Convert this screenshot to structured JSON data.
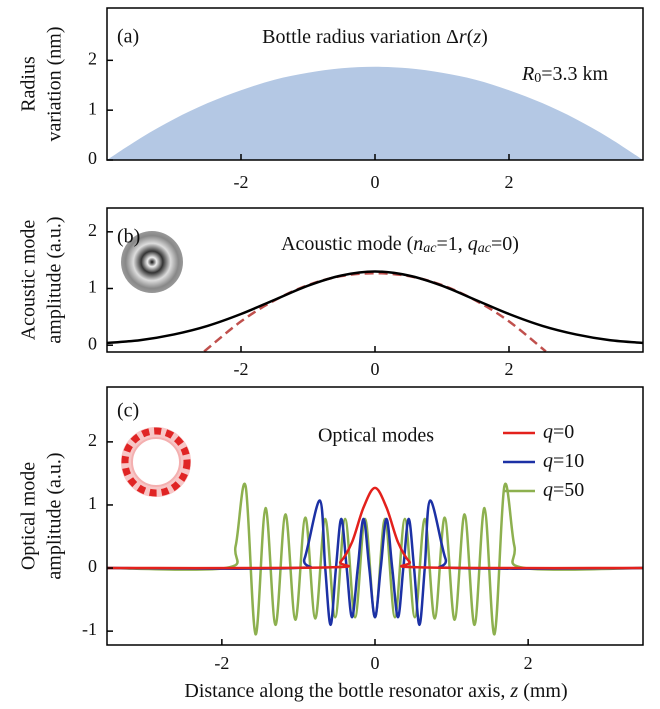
{
  "chart_data": [
    {
      "type": "area",
      "label": "(a)",
      "title": [
        {
          "text": "Bottle radius variation Δ"
        },
        {
          "text": "r",
          "style": "italic"
        },
        {
          "text": "("
        },
        {
          "text": "z",
          "style": "italic"
        },
        {
          "text": ")"
        }
      ],
      "annotation": [
        {
          "text": "R",
          "style": "italic"
        },
        {
          "text": "0",
          "style": "sub"
        },
        {
          "text": "=3.3 km"
        }
      ],
      "ylabel": [
        "Radius",
        "variation (nm)"
      ],
      "xlim": [
        -4,
        4
      ],
      "xticks": [
        -2,
        0,
        2
      ],
      "ylim": [
        0,
        3.05
      ],
      "yticks": [
        0,
        1,
        2
      ],
      "series": [
        {
          "color": "#b4c8e4",
          "x": [
            -4,
            -3.5,
            -3,
            -2.5,
            -2,
            -1.5,
            -1,
            -0.5,
            0,
            0.5,
            1,
            1.5,
            2,
            2.5,
            3,
            3.5,
            4
          ],
          "values": [
            0,
            0.44,
            0.82,
            1.14,
            1.4,
            1.61,
            1.75,
            1.84,
            1.87,
            1.84,
            1.75,
            1.61,
            1.4,
            1.14,
            0.82,
            0.44,
            0
          ]
        }
      ]
    },
    {
      "type": "line",
      "label": "(b)",
      "title": [
        {
          "text": "Acoustic mode  ("
        },
        {
          "text": "n",
          "style": "italic"
        },
        {
          "text": "ac",
          "style": "italic sub"
        },
        {
          "text": "=1, "
        },
        {
          "text": "q",
          "style": "italic"
        },
        {
          "text": "ac",
          "style": "italic sub"
        },
        {
          "text": "=0)"
        }
      ],
      "ylabel": [
        "Acoustic mode",
        "amplitude (a.u.)"
      ],
      "xlim": [
        -4,
        4
      ],
      "xticks": [
        -2,
        0,
        2
      ],
      "ylim": [
        -0.12,
        2.42
      ],
      "yticks": [
        0,
        1,
        2
      ],
      "series": [
        {
          "color": "#000000",
          "x": [
            -4,
            -3.5,
            -3,
            -2.5,
            -2,
            -1.5,
            -1,
            -0.5,
            0,
            0.5,
            1,
            1.5,
            2,
            2.5,
            3,
            3.5,
            4
          ],
          "values": [
            0.04,
            0.09,
            0.19,
            0.34,
            0.55,
            0.8,
            1.05,
            1.23,
            1.3,
            1.23,
            1.05,
            0.8,
            0.55,
            0.34,
            0.19,
            0.09,
            0.04
          ]
        },
        {
          "color": "#c0504d",
          "dashed": true,
          "x": [
            -2.55,
            -2,
            -1.5,
            -1,
            -0.5,
            0,
            0.5,
            1,
            1.5,
            2,
            2.55
          ],
          "values": [
            -0.11,
            0.42,
            0.79,
            1.06,
            1.22,
            1.27,
            1.22,
            1.06,
            0.79,
            0.42,
            -0.11
          ]
        }
      ]
    },
    {
      "type": "line",
      "label": "(c)",
      "title": "Optical modes",
      "ylabel": [
        "Optical mode",
        "amplitude (a.u.)"
      ],
      "xlabel": [
        {
          "text": "Distance along the bottle resonator axis, "
        },
        {
          "text": "z",
          "style": "italic"
        },
        {
          "text": " (mm)"
        }
      ],
      "xlim": [
        -3.5,
        3.5
      ],
      "xticks": [
        -2,
        0,
        2
      ],
      "ylim": [
        -1.22,
        2.87
      ],
      "yticks": [
        -1,
        0,
        1,
        2
      ],
      "legend": "upper right",
      "series": [
        {
          "name": [
            {
              "text": "q",
              "style": "italic"
            },
            {
              "text": "=0"
            }
          ],
          "color": "#e3211c",
          "x": [
            -3.5,
            -0.6,
            -0.45,
            -0.3,
            -0.15,
            0,
            0.15,
            0.3,
            0.45,
            0.6,
            3.5
          ],
          "values": [
            0,
            0.01,
            0.1,
            0.41,
            0.96,
            1.27,
            0.96,
            0.41,
            0.1,
            0.01,
            0
          ]
        },
        {
          "name": [
            {
              "text": "q",
              "style": "italic"
            },
            {
              "text": "=10"
            }
          ],
          "color": "#1c31a5",
          "x": [
            -3.5,
            -1.05,
            -0.92,
            -0.72,
            -0.65,
            -0.58,
            -0.51,
            -0.44,
            -0.37,
            -0.3,
            -0.225,
            -0.15,
            -0.075,
            0,
            0.075,
            0.15,
            0.225,
            0.3,
            0.37,
            0.44,
            0.51,
            0.58,
            0.65,
            0.72,
            0.92,
            1.05,
            3.5
          ],
          "values": [
            0,
            0,
            0.15,
            1.07,
            0,
            -0.9,
            0,
            0.78,
            0,
            -0.78,
            0,
            0.78,
            0,
            -0.78,
            0,
            0.78,
            0,
            -0.78,
            0,
            0.78,
            0,
            -0.9,
            0,
            1.07,
            0.15,
            0,
            0
          ]
        },
        {
          "name": [
            {
              "text": "q",
              "style": "italic"
            },
            {
              "text": "=50"
            }
          ],
          "color": "#8db04f",
          "x": [
            -3.5,
            -1.95,
            -1.82,
            -1.69,
            -1.56,
            -1.43,
            -1.3,
            -1.17,
            -1.04,
            -0.91,
            -0.78,
            -0.65,
            -0.52,
            -0.39,
            -0.26,
            -0.13,
            0,
            0.13,
            0.26,
            0.39,
            0.52,
            0.65,
            0.78,
            0.91,
            1.04,
            1.17,
            1.3,
            1.43,
            1.56,
            1.69,
            1.82,
            1.95,
            3.5
          ],
          "values": [
            0,
            0,
            0.35,
            1.3,
            -1.05,
            0.95,
            -0.9,
            0.85,
            -0.82,
            0.8,
            -0.8,
            0.78,
            -0.78,
            0.78,
            -0.78,
            0.78,
            -0.78,
            0.78,
            -0.78,
            0.78,
            -0.78,
            0.78,
            -0.8,
            0.8,
            -0.82,
            0.85,
            -0.9,
            0.95,
            -1.05,
            1.3,
            0.35,
            0,
            0
          ]
        }
      ]
    }
  ]
}
